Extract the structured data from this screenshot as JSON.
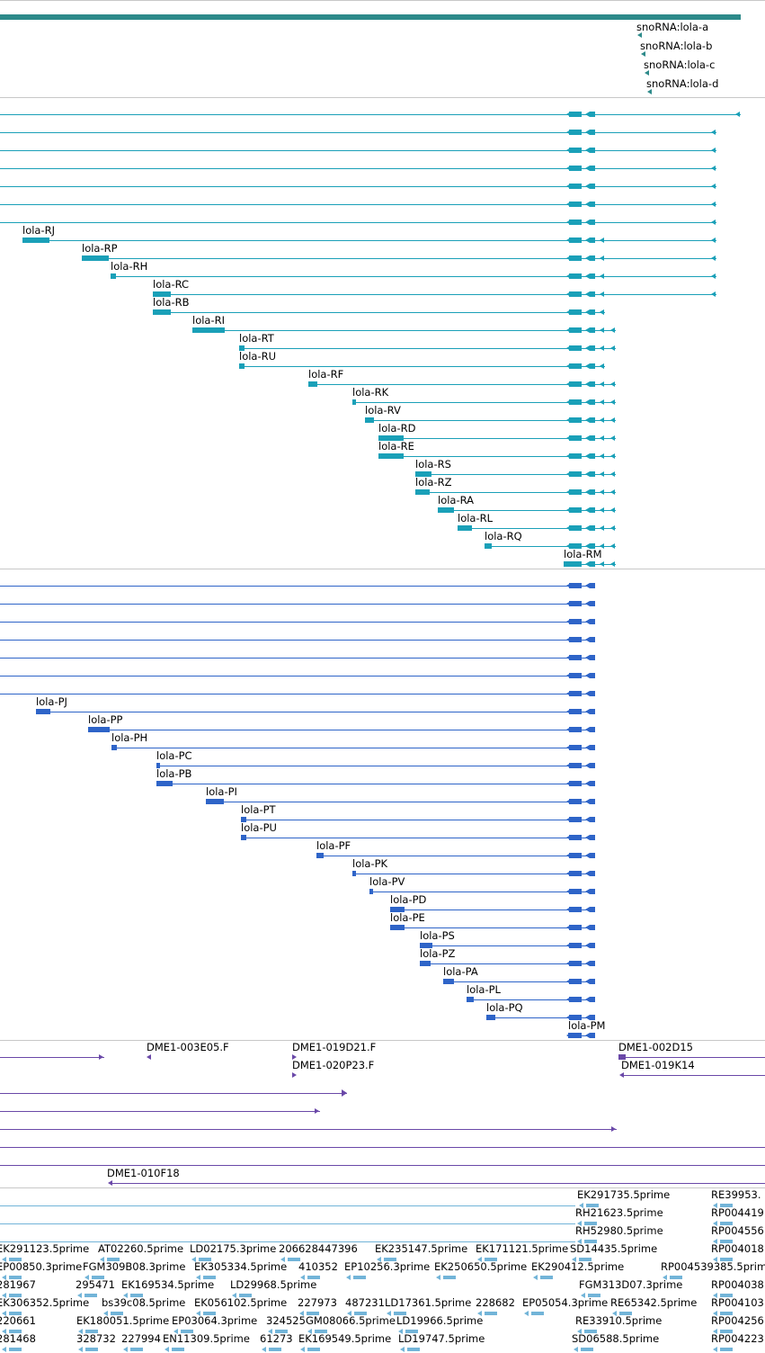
{
  "colors": {
    "gene_bar": "#2d8a8a",
    "transcript": "#1aa0b8",
    "protein": "#2e64c8",
    "clone": "#6a48a8",
    "est": "#72b4d8",
    "separator": "#c8c8c8"
  },
  "snorna": [
    "snoRNA:lola-a",
    "snoRNA:lola-b",
    "snoRNA:lola-c",
    "snoRNA:lola-d"
  ],
  "transcripts": [
    "lola-RJ",
    "lola-RP",
    "lola-RH",
    "lola-RC",
    "lola-RB",
    "lola-RI",
    "lola-RT",
    "lola-RU",
    "lola-RF",
    "lola-RK",
    "lola-RV",
    "lola-RD",
    "lola-RE",
    "lola-RS",
    "lola-RZ",
    "lola-RA",
    "lola-RL",
    "lola-RQ",
    "lola-RM"
  ],
  "proteins": [
    "lola-PJ",
    "lola-PP",
    "lola-PH",
    "lola-PC",
    "lola-PB",
    "lola-PI",
    "lola-PT",
    "lola-PU",
    "lola-PF",
    "lola-PK",
    "lola-PV",
    "lola-PD",
    "lola-PE",
    "lola-PS",
    "lola-PZ",
    "lola-PA",
    "lola-PL",
    "lola-PQ",
    "lola-PM"
  ],
  "clones": [
    "DME1-003E05.F",
    "DME1-019D21.F",
    "DME1-020P23.F",
    "DME1-002D15",
    "DME1-019K14",
    "DME1-010F18"
  ],
  "ests": [
    [
      "EK291735.5prime",
      "RE39953."
    ],
    [
      "RH21623.5prime",
      "RP004419"
    ],
    [
      "RH52980.5prime",
      "RP004556"
    ],
    [
      "EK291123.5prime",
      "AT02260.5prime",
      "LD02175.3prime",
      "206628447396",
      "EK235147.5prime",
      "EK171121.5prime",
      "SD14435.5prime",
      "RP004018"
    ],
    [
      "EP00850.3prime",
      "FGM309B08.3prime",
      "EK305334.5prime",
      "410352",
      "EP10256.3prime",
      "EK250650.5prime",
      "EK290412.5prime",
      "RP004539385.5prime"
    ],
    [
      "281967",
      "295471",
      "EK169534.5prime",
      "LD29968.5prime",
      "FGM313D07.3prime",
      "RP004038"
    ],
    [
      "EK306352.5prime",
      "bs39c08.5prime",
      "EK056102.5prime",
      "227973",
      "487231",
      "LD17361.5prime",
      "228682",
      "EP05054.3prime",
      "RE65342.5prime",
      "RP004103"
    ],
    [
      "220661",
      "EK180051.5prime",
      "EP03064.3prime",
      "324525",
      "GM08066.5prime",
      "LD19966.5prime",
      "RE33910.5prime",
      "RP004256"
    ],
    [
      "281468",
      "328732",
      "227994",
      "EN11309.5prime",
      "61273",
      "EK169549.5prime",
      "LD19747.5prime",
      "SD06588.5prime",
      "RP004223"
    ]
  ]
}
